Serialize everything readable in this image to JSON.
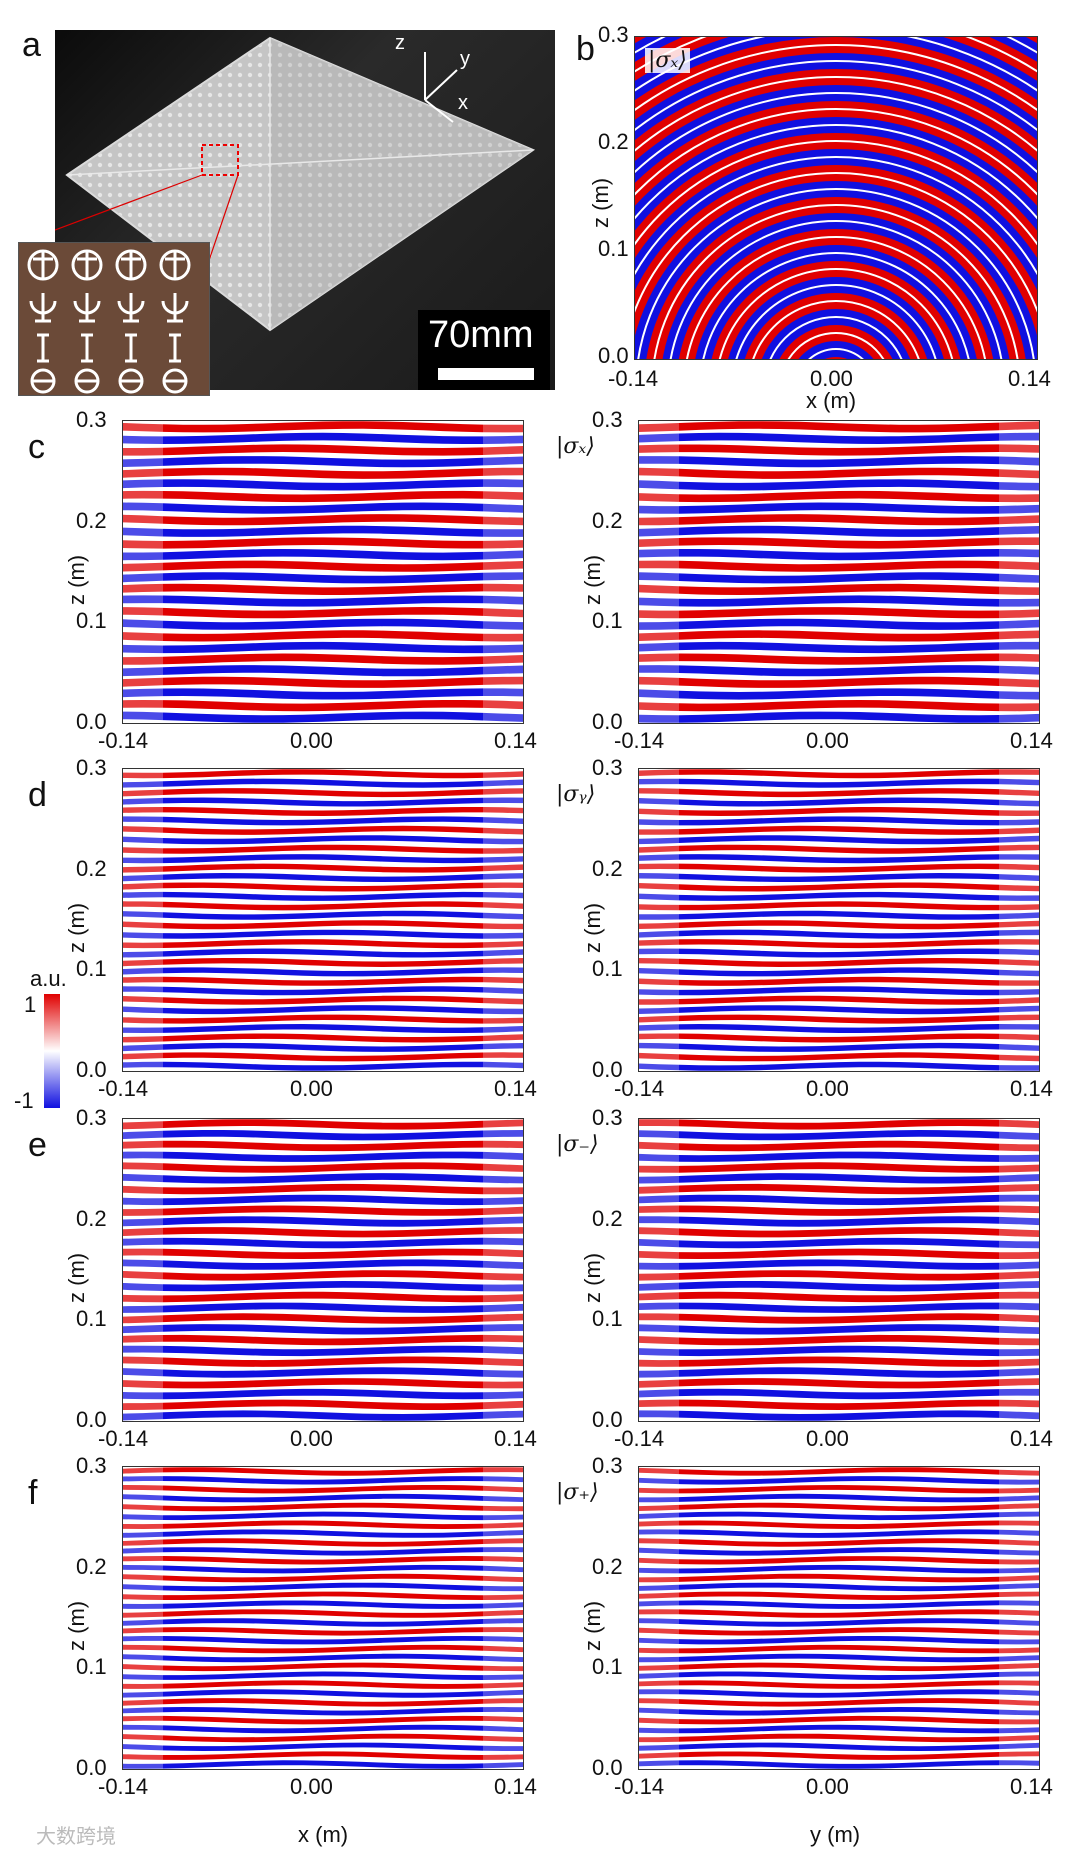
{
  "panel_labels": [
    "a",
    "b",
    "c",
    "d",
    "e",
    "f"
  ],
  "photo": {
    "scale_label": "70mm",
    "axes": {
      "z": "z",
      "y": "y",
      "x": "x"
    }
  },
  "panels": {
    "b": {
      "ket": "|σₓ⟩",
      "xlabel": "x (m)",
      "ylabel": "z (m)",
      "xticks": [
        "-0.14",
        "0.00",
        "0.14"
      ],
      "yticks": [
        "0.0",
        "0.1",
        "0.2",
        "0.3"
      ]
    },
    "c": {
      "ket": "|σₓ⟩"
    },
    "d": {
      "ket": "|σᵧ⟩"
    },
    "e": {
      "ket": "|σ₋⟩"
    },
    "f": {
      "ket": "|σ₊⟩"
    }
  },
  "common_axes": {
    "ylabel": "z (m)",
    "xticks": [
      "-0.14",
      "0.00",
      "0.14"
    ],
    "yticks": [
      "0.0",
      "0.1",
      "0.2",
      "0.3"
    ],
    "xlabel_left": "x (m)",
    "xlabel_right": "y (m)"
  },
  "colorbar": {
    "label": "a.u.",
    "max": "1",
    "min": "-1",
    "colors": {
      "pos": "#e00000",
      "mid": "#ffffff",
      "neg": "#1010e0"
    }
  },
  "watermark": "大数跨境",
  "chart_data": [
    {
      "type": "heatmap",
      "panel": "b",
      "title": "|σx⟩",
      "xlabel": "x (m)",
      "ylabel": "z (m)",
      "xlim": [
        -0.14,
        0.14
      ],
      "ylim": [
        0.0,
        0.3
      ],
      "pattern": "curved-wavefronts"
    },
    {
      "type": "heatmap",
      "panel": "c-left",
      "ylabel": "z (m)",
      "xlim": [
        -0.14,
        0.14
      ],
      "ylim": [
        0.0,
        0.3
      ],
      "pattern": "planar-wavefronts"
    },
    {
      "type": "heatmap",
      "panel": "c-right",
      "title": "|σx⟩",
      "ylabel": "z (m)",
      "xlim": [
        -0.14,
        0.14
      ],
      "ylim": [
        0.0,
        0.3
      ],
      "pattern": "planar-wavefronts"
    },
    {
      "type": "heatmap",
      "panel": "d-left",
      "ylabel": "z (m)",
      "xlim": [
        -0.14,
        0.14
      ],
      "ylim": [
        0.0,
        0.3
      ],
      "pattern": "planar-wavefronts"
    },
    {
      "type": "heatmap",
      "panel": "d-right",
      "title": "|σy⟩",
      "ylabel": "z (m)",
      "xlim": [
        -0.14,
        0.14
      ],
      "ylim": [
        0.0,
        0.3
      ],
      "pattern": "planar-wavefronts"
    },
    {
      "type": "heatmap",
      "panel": "e-left",
      "ylabel": "z (m)",
      "xlim": [
        -0.14,
        0.14
      ],
      "ylim": [
        0.0,
        0.3
      ],
      "pattern": "planar-wavefronts"
    },
    {
      "type": "heatmap",
      "panel": "e-right",
      "title": "|σ-⟩",
      "ylabel": "z (m)",
      "xlim": [
        -0.14,
        0.14
      ],
      "ylim": [
        0.0,
        0.3
      ],
      "pattern": "planar-wavefronts"
    },
    {
      "type": "heatmap",
      "panel": "f-left",
      "xlabel": "x (m)",
      "ylabel": "z (m)",
      "xlim": [
        -0.14,
        0.14
      ],
      "ylim": [
        0.0,
        0.3
      ],
      "pattern": "planar-wavefronts"
    },
    {
      "type": "heatmap",
      "panel": "f-right",
      "title": "|σ+⟩",
      "xlabel": "y (m)",
      "ylabel": "z (m)",
      "xlim": [
        -0.14,
        0.14
      ],
      "ylim": [
        0.0,
        0.3
      ],
      "pattern": "planar-wavefronts"
    }
  ]
}
